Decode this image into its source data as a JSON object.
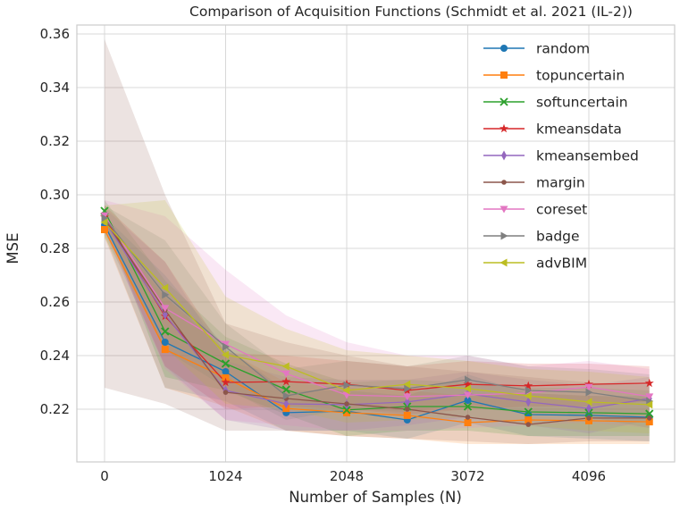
{
  "figure": {
    "background": "#ffffff",
    "grid_color": "#d8d8d8",
    "spine_color": "#cccccc",
    "text_color": "#262626"
  },
  "chart_data": {
    "type": "line",
    "title": "Comparison of Acquisition Functions (Schmidt et al. 2021 (IL-2))",
    "xlabel": "Number of Samples (N)",
    "ylabel": "MSE",
    "grid": true,
    "legend_position": "upper right",
    "legend_frame": false,
    "xlim": [
      -235,
      4855
    ],
    "ylim": [
      0.2003,
      0.3633
    ],
    "x": [
      0,
      512,
      1024,
      1536,
      2048,
      2560,
      3072,
      3584,
      4096,
      4608
    ],
    "xticks": [
      {
        "value": 0,
        "label": "0"
      },
      {
        "value": 1024,
        "label": "1024"
      },
      {
        "value": 2048,
        "label": "2048"
      },
      {
        "value": 3072,
        "label": "3072"
      },
      {
        "value": 4096,
        "label": "4096"
      }
    ],
    "yticks": [
      {
        "value": 0.22,
        "label": "0.22"
      },
      {
        "value": 0.24,
        "label": "0.24"
      },
      {
        "value": 0.26,
        "label": "0.26"
      },
      {
        "value": 0.28,
        "label": "0.28"
      },
      {
        "value": 0.3,
        "label": "0.30"
      },
      {
        "value": 0.32,
        "label": "0.32"
      },
      {
        "value": 0.34,
        "label": "0.34"
      },
      {
        "value": 0.36,
        "label": "0.36"
      }
    ],
    "series": [
      {
        "name": "random",
        "color": "#1f77b4",
        "marker": "circle",
        "values": [
          0.2887,
          0.245,
          0.234,
          0.2187,
          0.2193,
          0.216,
          0.2233,
          0.218,
          0.2177,
          0.217
        ],
        "band_upper": [
          0.292,
          0.27,
          0.243,
          0.227,
          0.227,
          0.225,
          0.233,
          0.226,
          0.225,
          0.225
        ],
        "band_lower": [
          0.285,
          0.228,
          0.223,
          0.212,
          0.212,
          0.209,
          0.215,
          0.21,
          0.209,
          0.208
        ]
      },
      {
        "name": "topuncertain",
        "color": "#ff7f0e",
        "marker": "square",
        "values": [
          0.287,
          0.2423,
          0.2317,
          0.2203,
          0.2187,
          0.2177,
          0.215,
          0.216,
          0.2157,
          0.2153
        ],
        "band_upper": [
          0.29,
          0.262,
          0.242,
          0.23,
          0.228,
          0.227,
          0.225,
          0.226,
          0.225,
          0.224
        ],
        "band_lower": [
          0.284,
          0.228,
          0.221,
          0.212,
          0.21,
          0.209,
          0.207,
          0.207,
          0.207,
          0.207
        ]
      },
      {
        "name": "softuncertain",
        "color": "#2ca02c",
        "marker": "x",
        "values": [
          0.294,
          0.249,
          0.237,
          0.2273,
          0.2197,
          0.221,
          0.221,
          0.219,
          0.2187,
          0.2183
        ],
        "band_upper": [
          0.298,
          0.268,
          0.247,
          0.237,
          0.23,
          0.231,
          0.23,
          0.228,
          0.228,
          0.227
        ],
        "band_lower": [
          0.29,
          0.232,
          0.227,
          0.218,
          0.21,
          0.212,
          0.212,
          0.21,
          0.21,
          0.21
        ]
      },
      {
        "name": "kmeansdata",
        "color": "#d62728",
        "marker": "star",
        "values": [
          0.2917,
          0.2547,
          0.23,
          0.2303,
          0.2293,
          0.227,
          0.2293,
          0.2287,
          0.2293,
          0.2297
        ],
        "band_upper": [
          0.296,
          0.275,
          0.241,
          0.24,
          0.238,
          0.236,
          0.238,
          0.237,
          0.237,
          0.236
        ],
        "band_lower": [
          0.288,
          0.236,
          0.22,
          0.221,
          0.22,
          0.218,
          0.22,
          0.221,
          0.221,
          0.223
        ]
      },
      {
        "name": "kmeansembed",
        "color": "#9467bd",
        "marker": "diamond-thin",
        "values": [
          0.2903,
          0.2553,
          0.227,
          0.222,
          0.2217,
          0.2227,
          0.2257,
          0.2227,
          0.2203,
          0.224
        ],
        "band_upper": [
          0.295,
          0.275,
          0.238,
          0.232,
          0.231,
          0.231,
          0.234,
          0.231,
          0.229,
          0.232
        ],
        "band_lower": [
          0.286,
          0.236,
          0.216,
          0.212,
          0.212,
          0.214,
          0.217,
          0.214,
          0.211,
          0.216
        ]
      },
      {
        "name": "margin",
        "color": "#8c564b",
        "marker": "dot",
        "values": [
          0.2907,
          0.257,
          0.2263,
          0.224,
          0.222,
          0.22,
          0.217,
          0.2143,
          0.2167,
          0.2167
        ],
        "band_upper": [
          0.358,
          0.3,
          0.252,
          0.245,
          0.24,
          0.236,
          0.234,
          0.232,
          0.23,
          0.229
        ],
        "band_lower": [
          0.228,
          0.222,
          0.212,
          0.212,
          0.21,
          0.209,
          0.208,
          0.207,
          0.208,
          0.208
        ]
      },
      {
        "name": "coreset",
        "color": "#e377c2",
        "marker": "triangle-down",
        "values": [
          0.2923,
          0.2577,
          0.2443,
          0.2333,
          0.2253,
          0.2247,
          0.2253,
          0.226,
          0.2283,
          0.2247
        ],
        "band_upper": [
          0.298,
          0.292,
          0.272,
          0.255,
          0.245,
          0.24,
          0.24,
          0.236,
          0.238,
          0.235
        ],
        "band_lower": [
          0.287,
          0.235,
          0.216,
          0.214,
          0.212,
          0.212,
          0.213,
          0.214,
          0.215,
          0.213
        ]
      },
      {
        "name": "badge",
        "color": "#7f7f7f",
        "marker": "triangle-right",
        "values": [
          0.2913,
          0.2627,
          0.2433,
          0.225,
          0.229,
          0.2277,
          0.231,
          0.227,
          0.2263,
          0.223
        ],
        "band_upper": [
          0.296,
          0.283,
          0.252,
          0.235,
          0.238,
          0.236,
          0.24,
          0.236,
          0.235,
          0.233
        ],
        "band_lower": [
          0.288,
          0.242,
          0.228,
          0.216,
          0.22,
          0.219,
          0.222,
          0.218,
          0.217,
          0.213
        ]
      },
      {
        "name": "advBIM",
        "color": "#bcbd22",
        "marker": "triangle-left",
        "values": [
          0.2897,
          0.2653,
          0.2403,
          0.236,
          0.227,
          0.2293,
          0.2277,
          0.225,
          0.2227,
          0.2217
        ],
        "band_upper": [
          0.296,
          0.298,
          0.262,
          0.25,
          0.242,
          0.24,
          0.238,
          0.235,
          0.234,
          0.232
        ],
        "band_lower": [
          0.284,
          0.243,
          0.222,
          0.22,
          0.215,
          0.216,
          0.217,
          0.214,
          0.212,
          0.211
        ]
      }
    ]
  }
}
